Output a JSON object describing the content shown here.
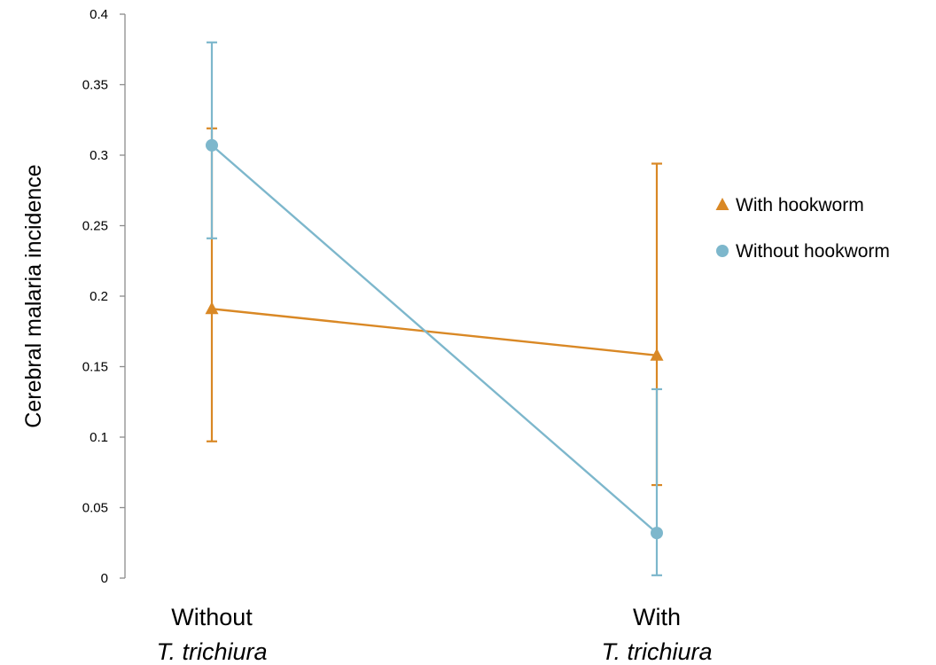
{
  "chart_data": {
    "type": "line",
    "title": "",
    "ylabel": "Cerebral malaria incidence",
    "xlabel": "",
    "categories": [
      {
        "line1": "Without",
        "line2": "T. trichiura"
      },
      {
        "line1": "With",
        "line2": "T. trichiura"
      }
    ],
    "ylim": [
      0,
      0.4
    ],
    "yticks": [
      "0",
      "0.05",
      "0.1",
      "0.15",
      "0.2",
      "0.25",
      "0.3",
      "0.35",
      "0.4"
    ],
    "ytick_values": [
      0,
      0.05,
      0.1,
      0.15,
      0.2,
      0.25,
      0.3,
      0.35,
      0.4
    ],
    "grid": false,
    "legend_position": "right",
    "series": [
      {
        "name": "With hookworm",
        "marker": "triangle",
        "color": "#D98825",
        "values": [
          0.191,
          0.158
        ],
        "error_low": [
          0.097,
          0.066
        ],
        "error_high": [
          0.319,
          0.294
        ]
      },
      {
        "name": "Without hookworm",
        "marker": "circle",
        "color": "#7DB7CC",
        "values": [
          0.307,
          0.032
        ],
        "error_low": [
          0.241,
          0.002
        ],
        "error_high": [
          0.38,
          0.134
        ]
      }
    ],
    "axis_color": "#8C8C8C"
  }
}
